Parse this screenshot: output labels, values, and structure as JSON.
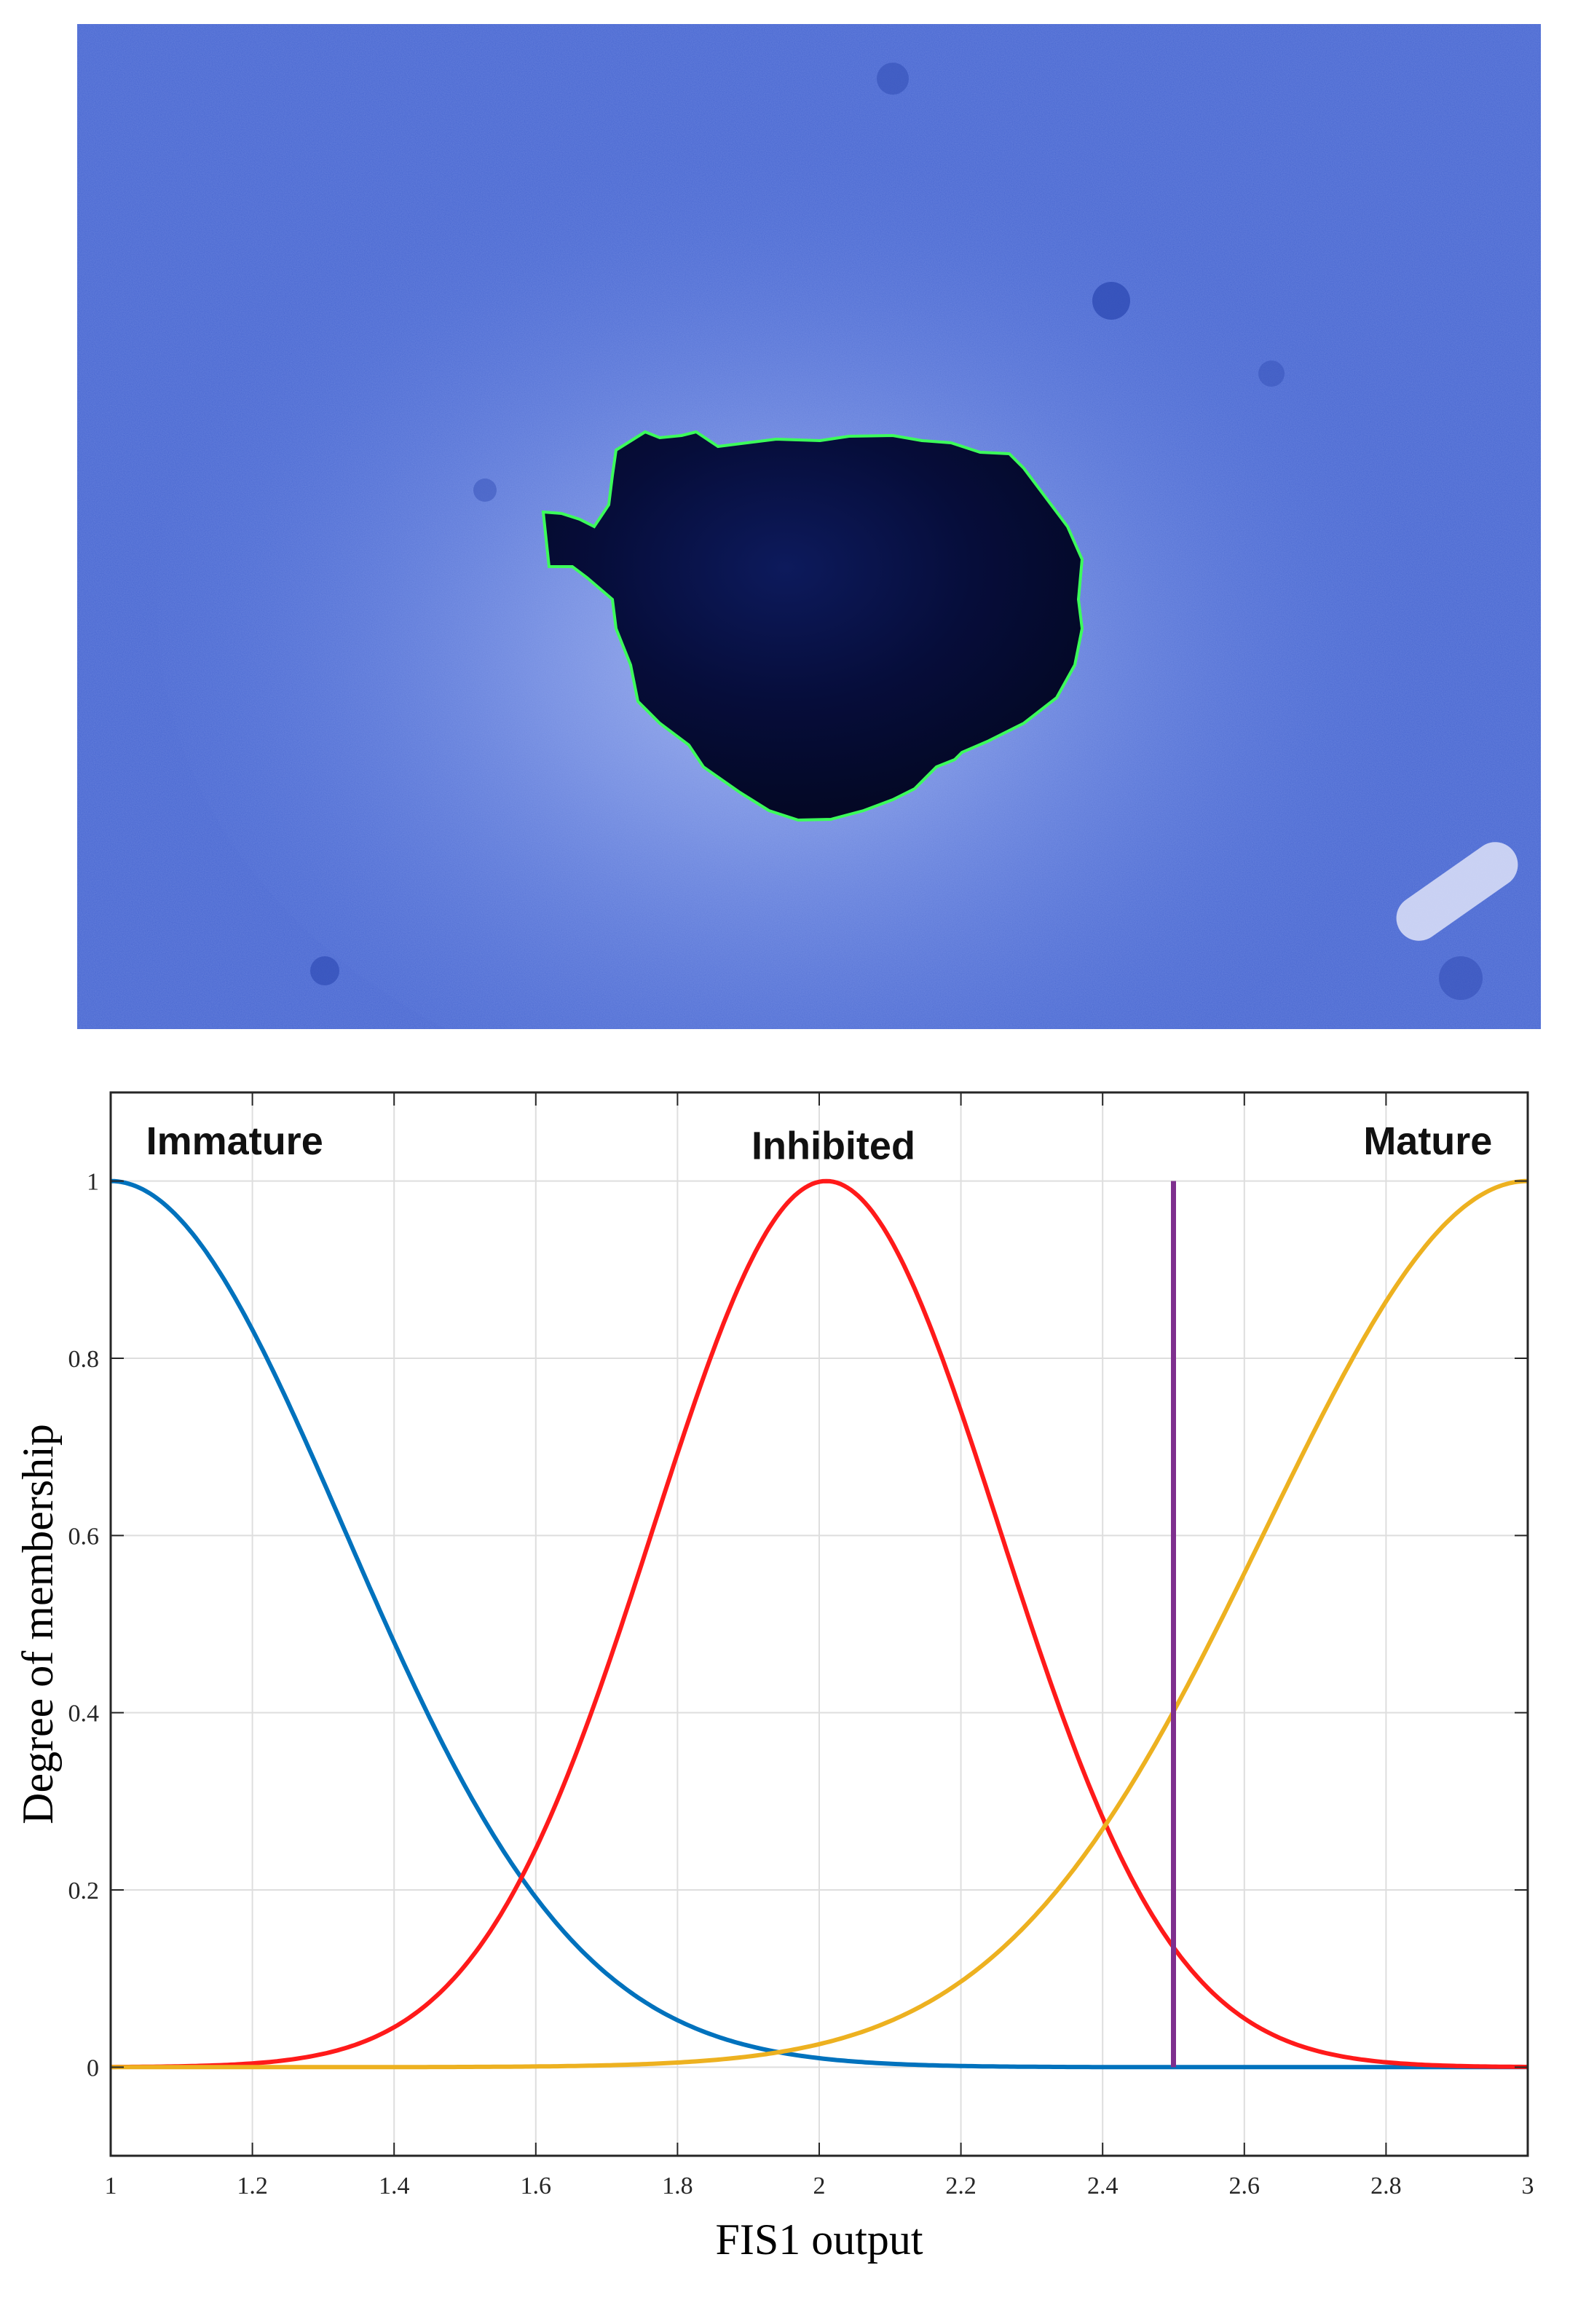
{
  "photo": {
    "description_icon": "micrograph-icon",
    "background_color": "#4f6fd8",
    "lesion_color": "#050a2e",
    "contour_color": "#3cff5a"
  },
  "chart_data": {
    "type": "line",
    "title": "",
    "xlabel": "FIS1 output",
    "ylabel": "Degree of membership",
    "xlim": [
      1,
      3
    ],
    "ylim": [
      -0.1,
      1.1
    ],
    "xticks": [
      1,
      1.2,
      1.4,
      1.6,
      1.8,
      2,
      2.2,
      2.4,
      2.6,
      2.8,
      3
    ],
    "yticks": [
      0,
      0.2,
      0.4,
      0.6,
      0.8,
      1
    ],
    "xtick_labels": [
      "1",
      "1.2",
      "1.4",
      "1.6",
      "1.8",
      "2",
      "2.2",
      "2.4",
      "2.6",
      "2.8",
      "3"
    ],
    "ytick_labels": [
      "0",
      "0.2",
      "0.4",
      "0.6",
      "0.8",
      "1"
    ],
    "grid": true,
    "legend": "none",
    "series": [
      {
        "label": "Immature",
        "shape": "gaussian",
        "center": 1.0,
        "sigma": 0.33,
        "color": "#0072bd"
      },
      {
        "label": "Inhibited",
        "shape": "gaussian",
        "center": 2.01,
        "sigma": 0.245,
        "color": "#ff1a1a"
      },
      {
        "label": "Mature",
        "shape": "gaussian",
        "center": 3.0,
        "sigma": 0.37,
        "color": "#edb120"
      }
    ],
    "marker_line": {
      "x": 2.5,
      "y_from": 0,
      "y_to": 1,
      "color": "#7e2f8e"
    }
  }
}
